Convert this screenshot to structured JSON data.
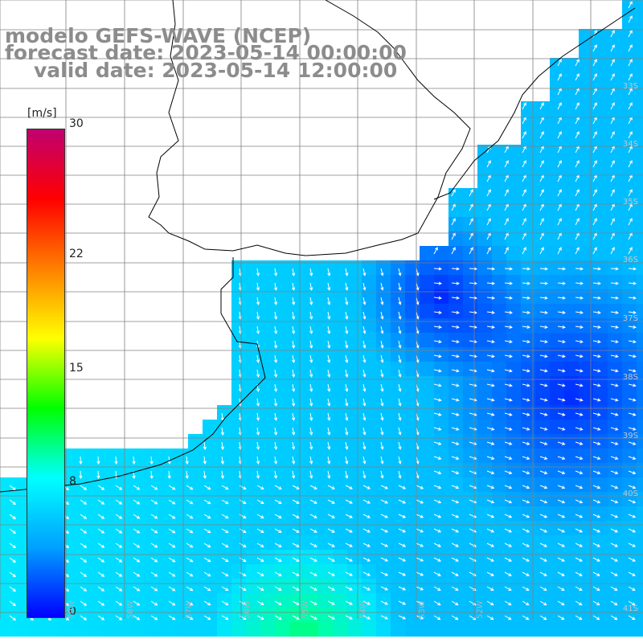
{
  "header": {
    "model": "modelo GEFS-WAVE (NCEP)",
    "forecast": "forecast date: 2023-05-14 00:00:00",
    "valid": "valid date: 2023-05-14 12:00:00"
  },
  "colorbar": {
    "units": "[m/s]",
    "ticks": [
      "30",
      "22",
      "15",
      "8",
      "0"
    ],
    "tick_values": [
      30,
      22,
      15,
      8,
      0
    ],
    "range": [
      0,
      30
    ],
    "colors": [
      "#0000ff",
      "#00a0ff",
      "#00ffff",
      "#00ff00",
      "#ffff00",
      "#ff8000",
      "#ff0000",
      "#c0006f"
    ]
  },
  "map": {
    "lat_labels": [
      "33S",
      "34S",
      "35S",
      "36S",
      "37S",
      "38S",
      "39S",
      "40S",
      "41S"
    ],
    "lon_labels": [
      "59W",
      "58W",
      "57W",
      "56W",
      "55W",
      "54W",
      "53W",
      "52W"
    ],
    "colors": {
      "land": "#ffffff",
      "coast": "#000000",
      "grid": "#808080",
      "vector": "#ffffff"
    }
  }
}
